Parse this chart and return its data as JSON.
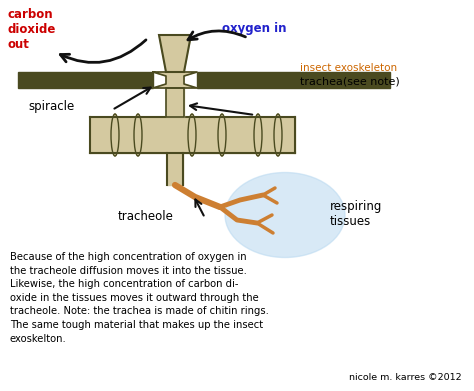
{
  "background_color": "#ffffff",
  "labels": {
    "carbon_dioxide": "carbon\ndioxide\nout",
    "oxygen_in": "oxygen in",
    "insect_exoskeleton": "insect exoskeleton",
    "trachea": "trachea(see note)",
    "spiracle": "spiracle",
    "tracheole": "tracheole",
    "respiring_tissues": "respiring\ntissues"
  },
  "label_colors": {
    "carbon_dioxide": "#cc0000",
    "oxygen_in": "#2222cc",
    "insect_exoskeleton": "#cc6600",
    "trachea": "#000000",
    "spiracle": "#000000",
    "tracheole": "#000000",
    "respiring_tissues": "#000000"
  },
  "body_text": "Because of the high concentration of oxygen in\nthe tracheole diffusion moves it into the tissue.\nLikewise, the high concentration of carbon di-\noxide in the tissues moves it outward through the\ntracheole. Note: the trachea is made of chitin rings.\nThe same tough material that makes up the insect\nexoskelton.",
  "credit": "nicole m. karres ©2012",
  "diagram_color": "#4a4a20",
  "fill_color": "#d4c9a0",
  "tissue_blob_color": "#b8d8f0",
  "tracheole_color": "#cd7f32"
}
